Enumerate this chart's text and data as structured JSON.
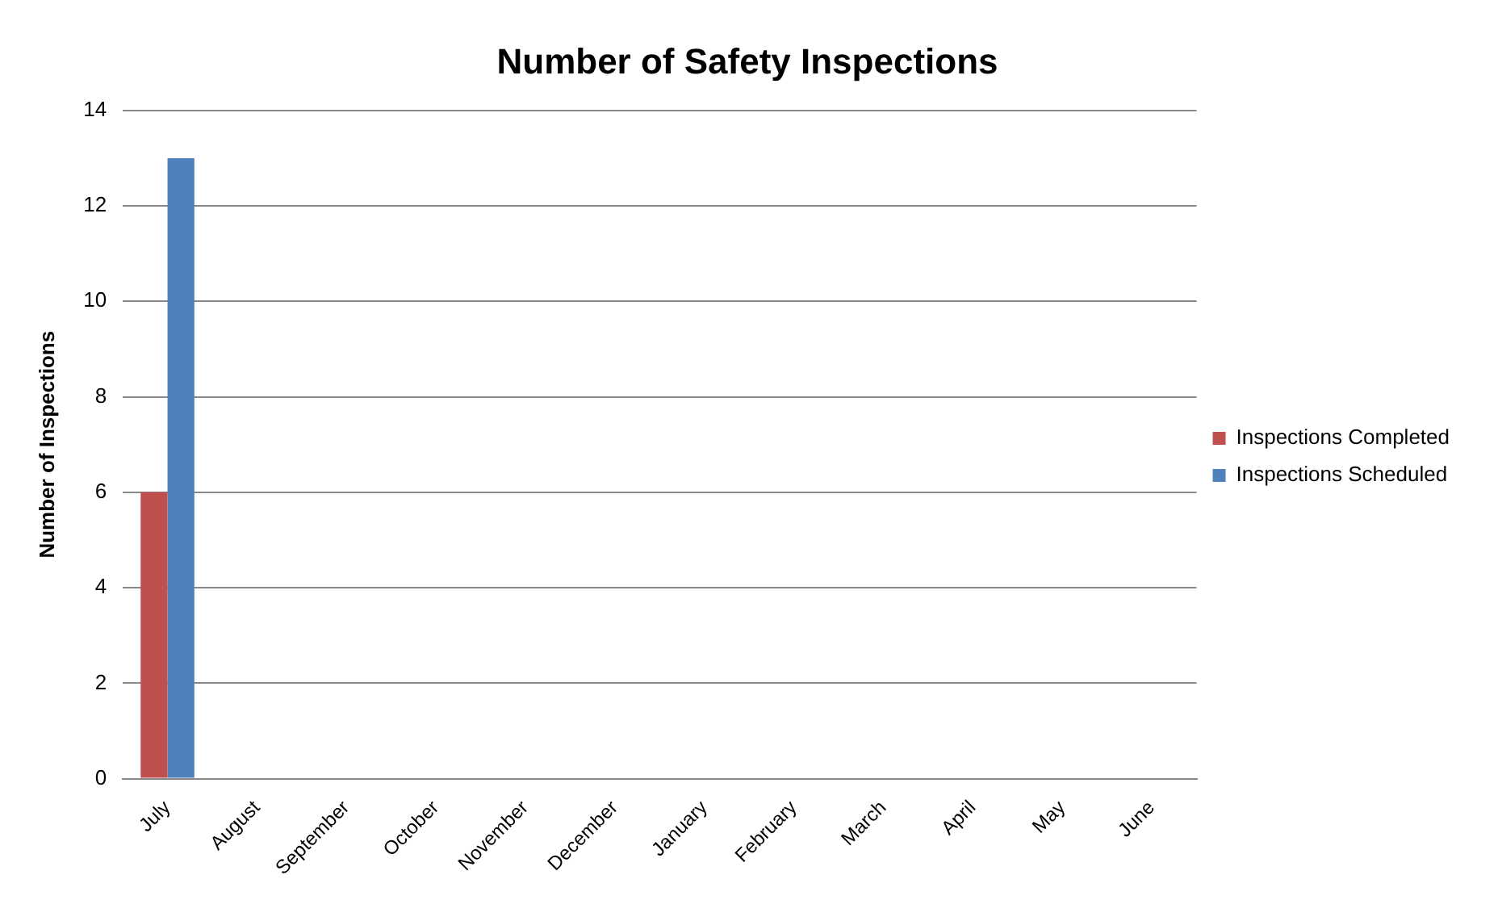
{
  "chart_data": {
    "type": "bar",
    "title": "Number of Safety Inspections",
    "ylabel": "Number of Inspections",
    "categories": [
      "July",
      "August",
      "September",
      "October",
      "November",
      "December",
      "January",
      "February",
      "March",
      "April",
      "May",
      "June"
    ],
    "series": [
      {
        "name": "Inspections Completed",
        "color": "#c0504d",
        "values": [
          6,
          null,
          null,
          null,
          null,
          null,
          null,
          null,
          null,
          null,
          null,
          null
        ]
      },
      {
        "name": "Inspections Scheduled",
        "color": "#4f81bd",
        "values": [
          13,
          null,
          null,
          null,
          null,
          null,
          null,
          null,
          null,
          null,
          null,
          null
        ]
      }
    ],
    "ylim": [
      0,
      14
    ],
    "yticks": [
      0,
      2,
      4,
      6,
      8,
      10,
      12,
      14
    ],
    "grid": "y",
    "legend": "right"
  }
}
